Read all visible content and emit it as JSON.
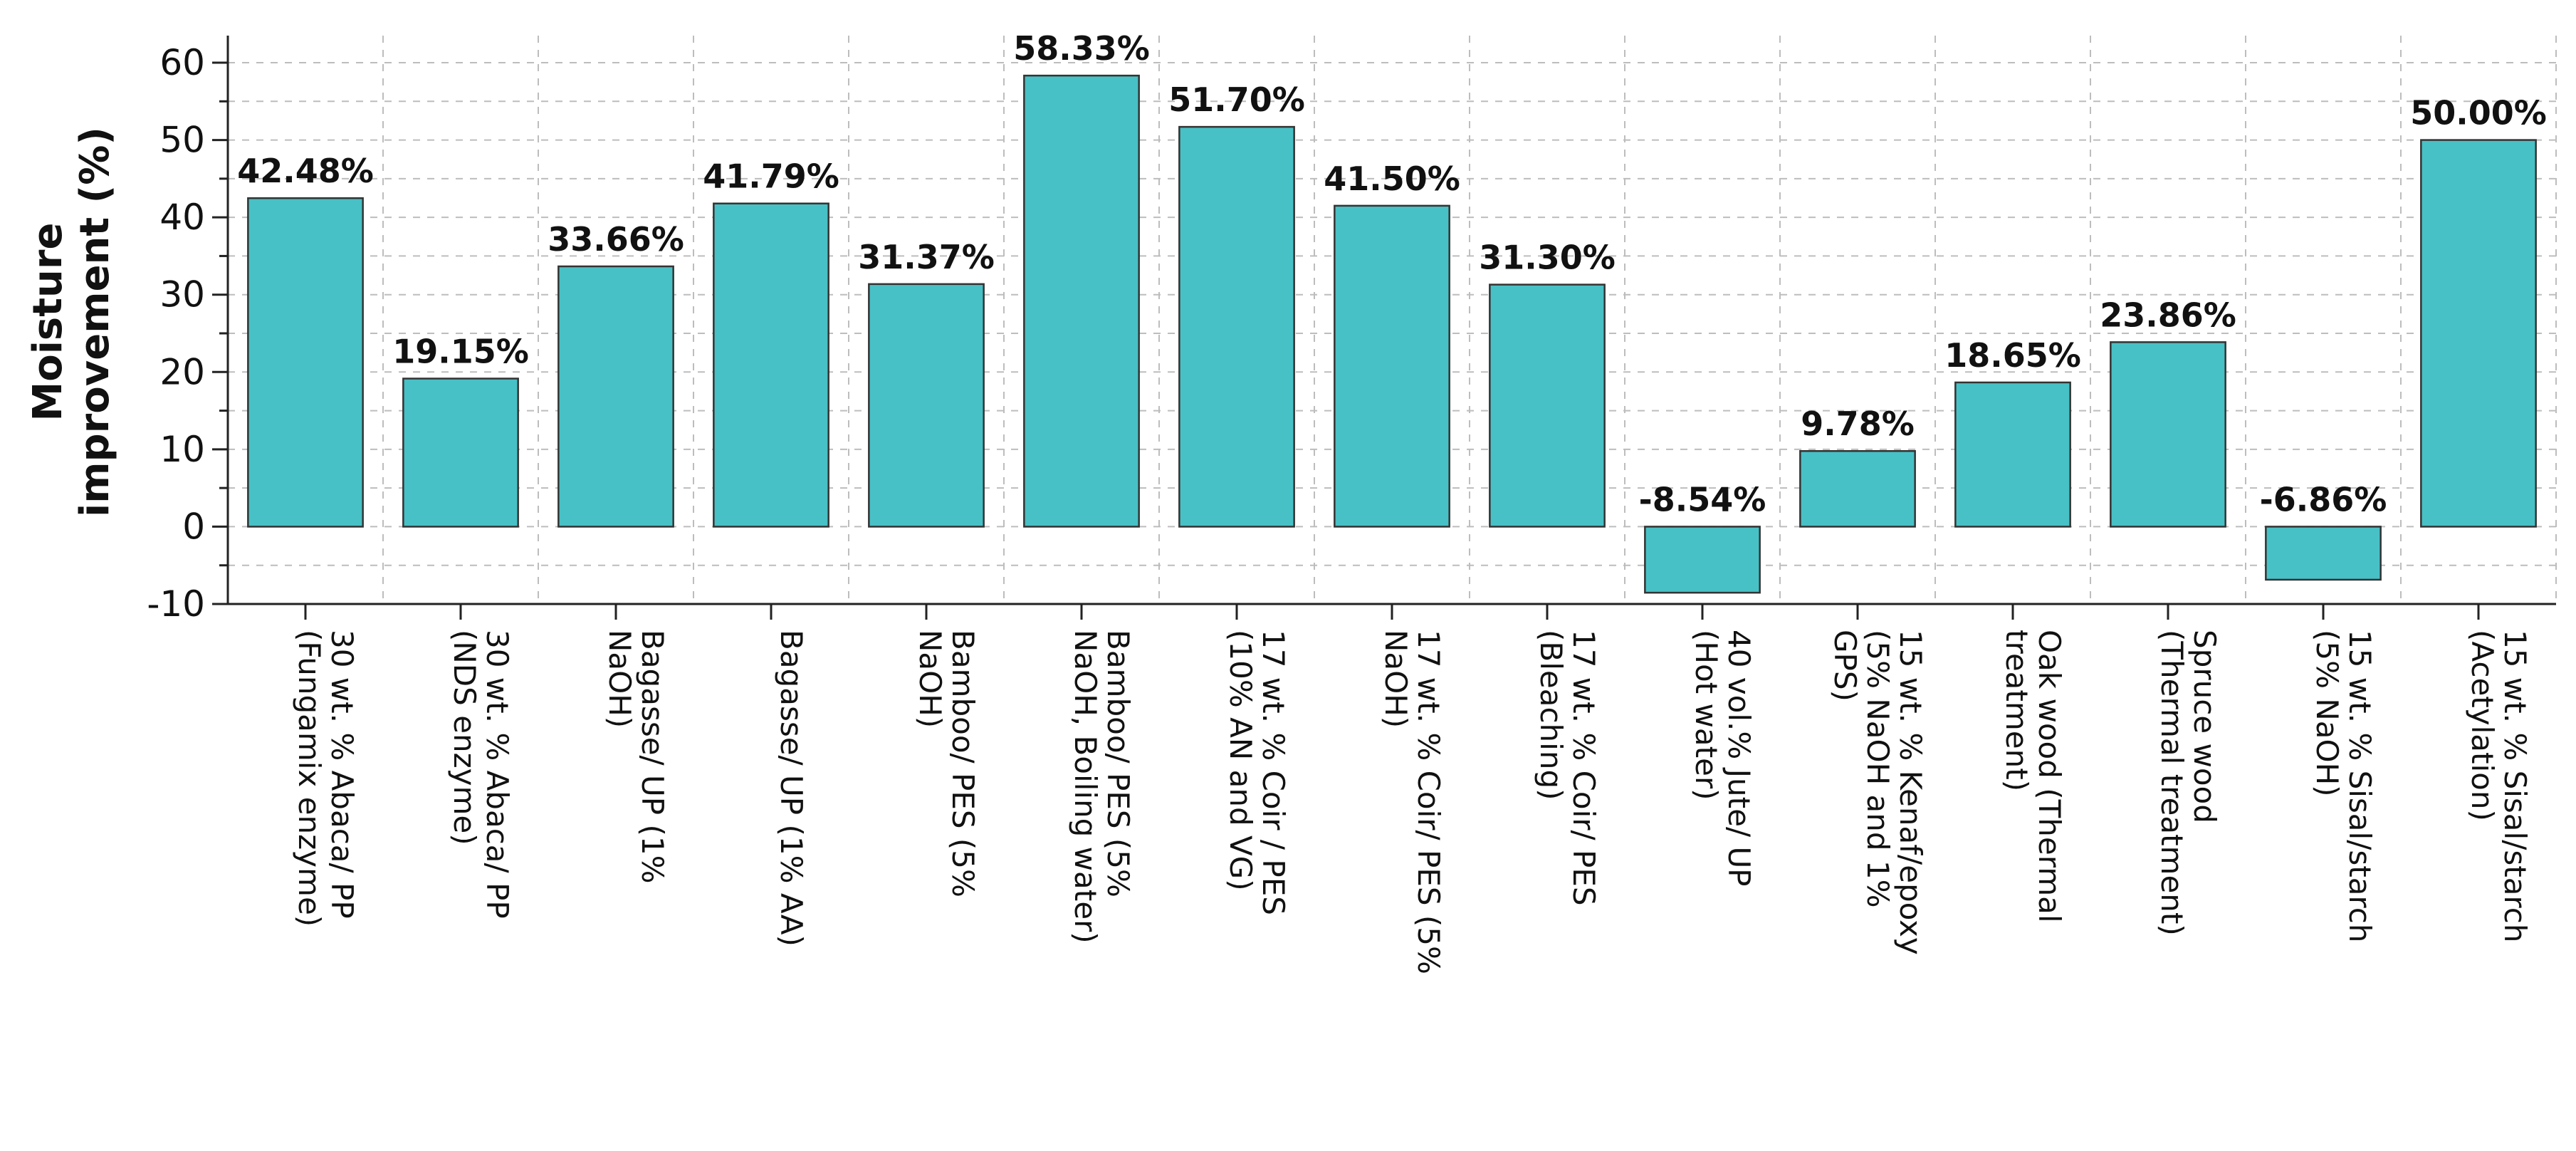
{
  "chart_data": {
    "type": "bar",
    "ylabel_lines": [
      "Moisture",
      "improvement (%)"
    ],
    "xlabel": "",
    "ylim": [
      -10,
      60
    ],
    "yticks": [
      -10,
      0,
      10,
      20,
      30,
      40,
      50,
      60
    ],
    "grid": true,
    "bar_color": "#48c1c6",
    "categories": [
      [
        "30 wt. % Abaca/ PP",
        "(Fungamix enzyme)"
      ],
      [
        "30 wt. % Abaca/ PP",
        "(NDS enzyme)"
      ],
      [
        "Bagasse/ UP (1%",
        "NaOH)"
      ],
      [
        "Bagasse/ UP (1% AA)"
      ],
      [
        "Bamboo/ PES (5%",
        "NaOH)"
      ],
      [
        "Bamboo/ PES (5%",
        "NaOH, Boiling water)"
      ],
      [
        "17 wt. % Coir / PES",
        "(10% AN and VG)"
      ],
      [
        "17 wt. % Coir/ PES (5%",
        "NaOH)"
      ],
      [
        "17 wt. % Coir/ PES",
        "(Bleaching)"
      ],
      [
        "40 vol.% Jute/ UP",
        "(Hot water)"
      ],
      [
        "15 wt. % Kenaf/epoxy",
        "(5% NaOH and 1%",
        "GPS)"
      ],
      [
        "Oak wood (Thermal",
        "treatment)"
      ],
      [
        "Spruce wood",
        "(Thermal treatment)"
      ],
      [
        "15 wt. % Sisal/starch",
        "(5% NaOH)"
      ],
      [
        "15 wt. % Sisal/starch",
        "(Acetylation)"
      ]
    ],
    "values": [
      42.48,
      19.15,
      33.66,
      41.79,
      31.37,
      58.33,
      51.7,
      41.5,
      31.3,
      -8.54,
      9.78,
      18.65,
      23.86,
      -6.86,
      50.0
    ],
    "data_labels": [
      "42.48%",
      "19.15%",
      "33.66%",
      "41.79%",
      "31.37%",
      "58.33%",
      "51.70%",
      "41.50%",
      "31.30%",
      "-8.54%",
      "9.78%",
      "18.65%",
      "23.86%",
      "-6.86%",
      "50.00%"
    ]
  }
}
